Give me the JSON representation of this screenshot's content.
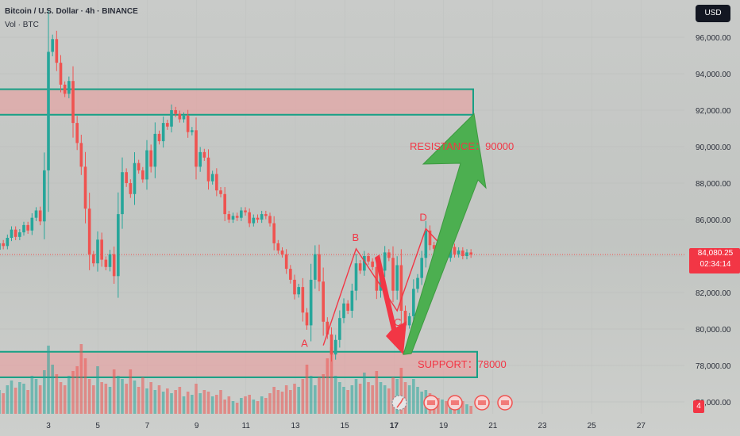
{
  "header": {
    "title": "Bitcoin / U.S. Dollar · 4h · BINANCE",
    "volume_label": "Vol · BTC"
  },
  "currency_button": "USD",
  "price_label": {
    "price": "84,080.25",
    "countdown": "02:34:14"
  },
  "volume_badge": "4",
  "annotations": {
    "resistance": "RESISTANCE：90000",
    "support": "SUPPORT：78000",
    "points": [
      "A",
      "B",
      "C",
      "D"
    ]
  },
  "colors": {
    "up": "#26a69a",
    "down": "#ef5350",
    "zone_fill": "#e8a2a2",
    "zone_border": "#16a085",
    "arrow_up": "#4caf50",
    "arrow_down": "#f23645",
    "annotation": "#f23645"
  },
  "chart_data": {
    "type": "candlestick",
    "symbol": "Bitcoin / U.S. Dollar",
    "timeframe": "4h",
    "exchange": "BINANCE",
    "x_ticks": [
      "3",
      "5",
      "7",
      "9",
      "11",
      "13",
      "15",
      "17",
      "19",
      "21",
      "23",
      "25",
      "27"
    ],
    "y_ticks": [
      "96,000.00",
      "94,000.00",
      "92,000.00",
      "90,000.00",
      "88,000.00",
      "86,000.00",
      "84,000.00",
      "82,000.00",
      "80,000.00",
      "78,000.00",
      "76,000.00"
    ],
    "ylim": [
      75600,
      97200
    ],
    "last_price": 84080.25,
    "start_open": 84000,
    "closes": [
      84350,
      84700,
      84550,
      85000,
      85450,
      85050,
      85300,
      85700,
      85400,
      86100,
      86500,
      85900,
      88700,
      95200,
      95900,
      94600,
      93400,
      92900,
      93600,
      91300,
      90200,
      88900,
      86600,
      84100,
      83600,
      84900,
      83800,
      83400,
      84100,
      82900,
      86300,
      88600,
      88000,
      87400,
      89100,
      88700,
      88200,
      89800,
      88900,
      90700,
      90300,
      91300,
      91100,
      92000,
      91800,
      91500,
      91700,
      90800,
      90900,
      88900,
      89700,
      89400,
      88100,
      88500,
      87600,
      87400,
      86300,
      86000,
      86200,
      86100,
      86500,
      86400,
      85800,
      86100,
      86000,
      86300,
      86200,
      85800,
      84700,
      84300,
      84100,
      83300,
      82700,
      81900,
      82300,
      80900,
      80200,
      82700,
      84100,
      82600,
      80400,
      79700,
      78600,
      79400,
      80600,
      81400,
      81000,
      82100,
      83600,
      83200,
      84000,
      83700,
      83400,
      82100,
      83200,
      84200,
      83900,
      82100,
      83500,
      81000,
      80200,
      80700,
      82200,
      82800,
      83900,
      85400,
      84600,
      84400,
      84000,
      84300,
      83900,
      84500,
      84100,
      84300,
      84000,
      84200,
      84080
    ],
    "vol_heights": [
      18,
      30,
      26,
      36,
      42,
      33,
      40,
      38,
      30,
      48,
      44,
      36,
      55,
      86,
      62,
      50,
      40,
      36,
      48,
      54,
      60,
      88,
      70,
      44,
      36,
      60,
      40,
      38,
      34,
      56,
      48,
      44,
      38,
      56,
      42,
      34,
      46,
      32,
      40,
      30,
      36,
      28,
      32,
      26,
      30,
      34,
      22,
      28,
      24,
      38,
      26,
      30,
      28,
      22,
      24,
      30,
      18,
      22,
      16,
      14,
      20,
      22,
      24,
      18,
      16,
      22,
      20,
      26,
      34,
      30,
      28,
      36,
      30,
      38,
      34,
      44,
      62,
      48,
      36,
      46,
      50,
      70,
      84,
      48,
      40,
      34,
      30,
      36,
      44,
      38,
      52,
      40,
      36,
      54,
      40,
      36,
      32,
      46,
      44,
      58,
      40,
      36,
      44,
      34,
      28,
      30,
      26,
      22,
      20,
      18,
      16,
      14,
      12,
      14,
      16,
      12,
      10
    ],
    "levels": [
      {
        "name": "resistance",
        "value": 90000
      },
      {
        "name": "support",
        "value": 78000
      }
    ],
    "zones": [
      {
        "name": "resistance",
        "y_range": [
          91750,
          93150
        ]
      },
      {
        "name": "support",
        "y_range": [
          77350,
          78750
        ]
      }
    ],
    "projection": {
      "direction": "down then up",
      "low": 78600,
      "target": 91800
    },
    "pattern_points": [
      {
        "label": "A",
        "price": 79100
      },
      {
        "label": "B",
        "price": 84400
      },
      {
        "label": "C",
        "price": 81000
      },
      {
        "label": "D",
        "price": 85500
      }
    ]
  }
}
